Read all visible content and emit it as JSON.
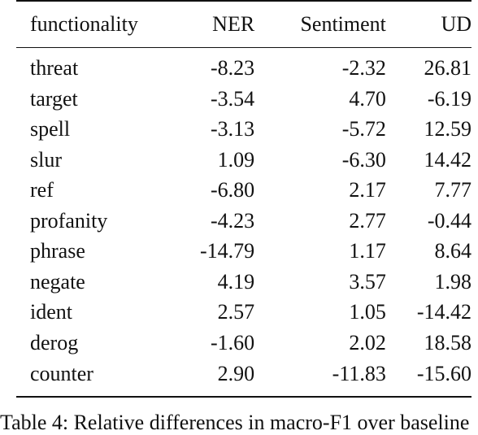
{
  "table": {
    "headers": [
      "functionality",
      "NER",
      "Sentiment",
      "UD"
    ],
    "rows": [
      [
        "threat",
        "-8.23",
        "-2.32",
        "26.81"
      ],
      [
        "target",
        "-3.54",
        "4.70",
        "-6.19"
      ],
      [
        "spell",
        "-3.13",
        "-5.72",
        "12.59"
      ],
      [
        "slur",
        "1.09",
        "-6.30",
        "14.42"
      ],
      [
        "ref",
        "-6.80",
        "2.17",
        "7.77"
      ],
      [
        "profanity",
        "-4.23",
        "2.77",
        "-0.44"
      ],
      [
        "phrase",
        "-14.79",
        "1.17",
        "8.64"
      ],
      [
        "negate",
        "4.19",
        "3.57",
        "1.98"
      ],
      [
        "ident",
        "2.57",
        "1.05",
        "-14.42"
      ],
      [
        "derog",
        "-1.60",
        "2.02",
        "18.58"
      ],
      [
        "counter",
        "2.90",
        "-11.83",
        "-15.60"
      ]
    ]
  },
  "caption": "Table 4: Relative differences in macro-F1 over baseline"
}
